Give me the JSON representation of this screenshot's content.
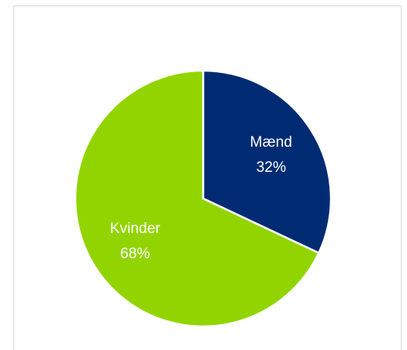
{
  "chart_data": {
    "type": "pie",
    "categories": [
      "Mænd",
      "Kvinder"
    ],
    "values": [
      32,
      68
    ],
    "value_labels": [
      "32%",
      "68%"
    ],
    "colors": [
      "#002b73",
      "#92d400"
    ],
    "label_colors": [
      "#ffffff",
      "#ffffff"
    ]
  }
}
